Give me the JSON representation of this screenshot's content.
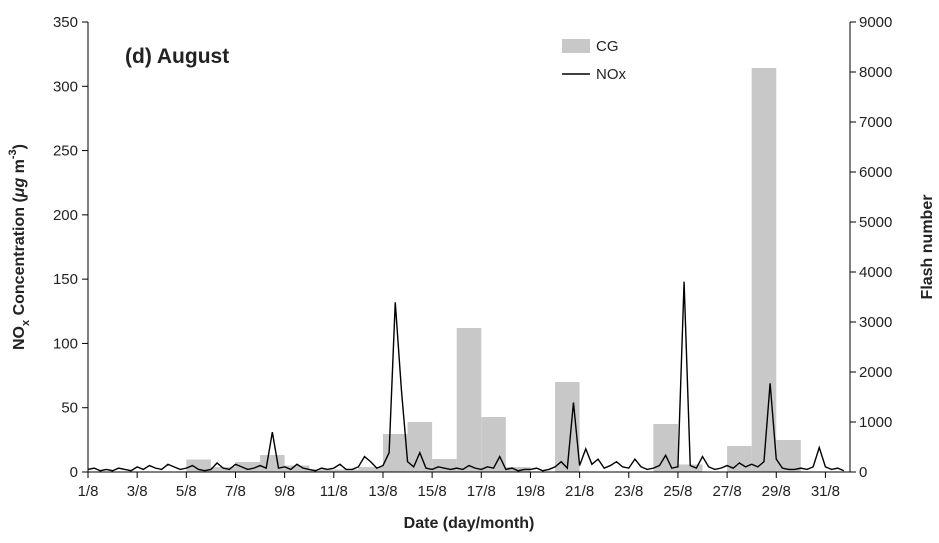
{
  "chart_data": {
    "type": "bar-line",
    "title": "(d) August",
    "xlabel": "Date (day/month)",
    "ylabel": [
      "NO",
      "x",
      " Concentration (",
      "μg",
      " m",
      "-3",
      ")"
    ],
    "y2label": "Flash number",
    "xlim": [
      1,
      32
    ],
    "xticks": [
      {
        "value": 1,
        "label": "1/8"
      },
      {
        "value": 3,
        "label": "3/8"
      },
      {
        "value": 5,
        "label": "5/8"
      },
      {
        "value": 7,
        "label": "7/8"
      },
      {
        "value": 9,
        "label": "9/8"
      },
      {
        "value": 11,
        "label": "11/8"
      },
      {
        "value": 13,
        "label": "13/8"
      },
      {
        "value": 15,
        "label": "15/8"
      },
      {
        "value": 17,
        "label": "17/8"
      },
      {
        "value": 19,
        "label": "19/8"
      },
      {
        "value": 21,
        "label": "21/8"
      },
      {
        "value": 23,
        "label": "23/8"
      },
      {
        "value": 25,
        "label": "25/8"
      },
      {
        "value": 27,
        "label": "27/8"
      },
      {
        "value": 29,
        "label": "29/8"
      },
      {
        "value": 31,
        "label": "31/8"
      }
    ],
    "ylim": [
      0,
      350
    ],
    "yticks": [
      0,
      50,
      100,
      150,
      200,
      250,
      300,
      350
    ],
    "y2lim": [
      0,
      9000
    ],
    "y2ticks": [
      0,
      1000,
      2000,
      3000,
      4000,
      5000,
      6000,
      7000,
      8000,
      9000
    ],
    "series": [
      {
        "name": "CG",
        "type": "bar",
        "axis": "y2",
        "color": "#c8c8c8",
        "x": [
          1,
          2,
          3,
          4,
          5,
          6,
          7,
          8,
          9,
          10,
          11,
          12,
          13,
          14,
          15,
          16,
          17,
          18,
          19,
          20,
          21,
          22,
          23,
          24,
          25,
          26,
          27,
          28,
          29,
          30,
          31
        ],
        "values": [
          0,
          0,
          0,
          0,
          250,
          100,
          200,
          340,
          130,
          50,
          50,
          100,
          760,
          1000,
          260,
          2880,
          1100,
          100,
          0,
          1800,
          0,
          0,
          0,
          960,
          150,
          0,
          520,
          8080,
          640,
          0,
          0
        ]
      },
      {
        "name": "NOx",
        "type": "line",
        "axis": "y",
        "color": "#000000",
        "x": [
          1,
          1.25,
          1.5,
          1.75,
          2,
          2.25,
          2.5,
          2.75,
          3,
          3.25,
          3.5,
          3.75,
          4,
          4.25,
          4.5,
          4.75,
          5,
          5.25,
          5.5,
          5.75,
          6,
          6.25,
          6.5,
          6.75,
          7,
          7.25,
          7.5,
          7.75,
          8,
          8.25,
          8.5,
          8.75,
          9,
          9.25,
          9.5,
          9.75,
          10,
          10.25,
          10.5,
          10.75,
          11,
          11.25,
          11.5,
          11.75,
          12,
          12.25,
          12.5,
          12.75,
          13,
          13.25,
          13.5,
          13.75,
          14,
          14.25,
          14.5,
          14.75,
          15,
          15.25,
          15.5,
          15.75,
          16,
          16.25,
          16.5,
          16.75,
          17,
          17.25,
          17.5,
          17.75,
          18,
          18.25,
          18.5,
          18.75,
          19,
          19.25,
          19.5,
          19.75,
          20,
          20.25,
          20.5,
          20.75,
          21,
          21.25,
          21.5,
          21.75,
          22,
          22.25,
          22.5,
          22.75,
          23,
          23.25,
          23.5,
          23.75,
          24,
          24.25,
          24.5,
          24.75,
          25,
          25.25,
          25.5,
          25.75,
          26,
          26.25,
          26.5,
          26.75,
          27,
          27.25,
          27.5,
          27.75,
          28,
          28.25,
          28.5,
          28.75,
          29,
          29.25,
          29.5,
          29.75,
          30,
          30.25,
          30.5,
          30.75,
          31,
          31.25,
          31.5,
          31.75
        ],
        "values": [
          2,
          3,
          1,
          2,
          1,
          3,
          2,
          1,
          4,
          2,
          5,
          3,
          2,
          6,
          4,
          2,
          3,
          5,
          2,
          1,
          2,
          7,
          3,
          2,
          6,
          4,
          2,
          3,
          5,
          3,
          31,
          3,
          4,
          2,
          6,
          3,
          2,
          1,
          3,
          2,
          3,
          6,
          2,
          2,
          4,
          12,
          8,
          3,
          5,
          15,
          132,
          64,
          8,
          4,
          15,
          3,
          2,
          4,
          3,
          2,
          3,
          2,
          5,
          3,
          2,
          4,
          3,
          12,
          2,
          3,
          1,
          2,
          2,
          3,
          1,
          2,
          4,
          8,
          3,
          54,
          5,
          18,
          6,
          10,
          3,
          5,
          8,
          4,
          3,
          10,
          4,
          2,
          3,
          5,
          13,
          3,
          4,
          148,
          5,
          3,
          12,
          4,
          2,
          3,
          5,
          3,
          7,
          4,
          6,
          4,
          8,
          69,
          10,
          3,
          2,
          2,
          3,
          2,
          4,
          19,
          4,
          2,
          3,
          1
        ]
      }
    ]
  }
}
